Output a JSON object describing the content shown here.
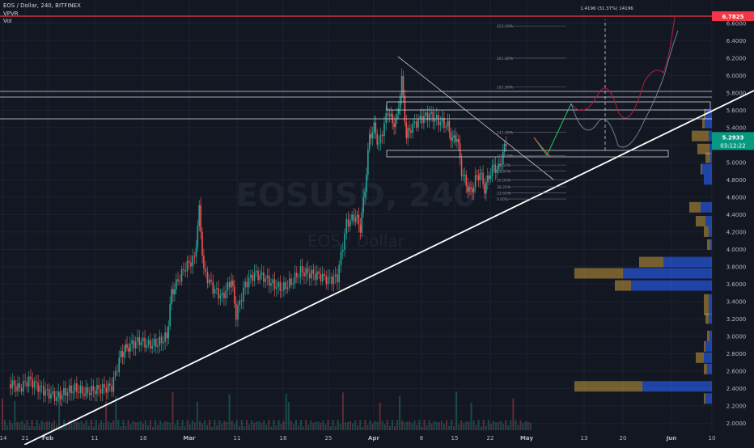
{
  "header": {
    "symbol_line": "EOS / Dollar, 240, BITFINEX",
    "indicator_1": "VPVR",
    "indicator_2": "Vol"
  },
  "watermark": {
    "ticker": "EOSUSD, 240",
    "name": "EOS / Dollar"
  },
  "colors": {
    "background": "#131722",
    "grid": "#1e2230",
    "axis_text": "#b2b5be",
    "up": "#26a69a",
    "down": "#ef5350",
    "resistance": "#f23645",
    "vp_up": "#2962ff",
    "vp_down": "#c99a3a",
    "trendline": "#ffffff",
    "current_label": "#089981"
  },
  "chart_data": {
    "type": "candlestick",
    "title": "EOS / Dollar, 240, BITFINEX",
    "price_axis": {
      "ticks": [
        "6.6000",
        "6.4000",
        "6.2000",
        "6.0000",
        "5.8000",
        "5.6000",
        "5.4000",
        "5.2000",
        "5.0000",
        "4.8000",
        "4.6000",
        "4.4000",
        "4.2000",
        "4.0000",
        "3.8000",
        "3.6000",
        "3.4000",
        "3.2000",
        "3.0000",
        "2.8000",
        "2.6000",
        "2.4000",
        "2.2000",
        "2.0000"
      ],
      "range": [
        1.92,
        6.85
      ]
    },
    "time_axis": {
      "ticks": [
        "14",
        "21",
        "Feb",
        "11",
        "18",
        "Mar",
        "11",
        "18",
        "25",
        "Apr",
        "8",
        "15",
        "22",
        "May",
        "13",
        "20",
        "Jun",
        "10"
      ]
    },
    "price_path": [
      {
        "t": "Jan 14",
        "p": 2.45
      },
      {
        "t": "Jan 16",
        "p": 2.4
      },
      {
        "t": "Jan 18",
        "p": 2.5
      },
      {
        "t": "Jan 20",
        "p": 2.42
      },
      {
        "t": "Jan 22",
        "p": 2.35
      },
      {
        "t": "Jan 24",
        "p": 2.3
      },
      {
        "t": "Jan 26",
        "p": 2.36
      },
      {
        "t": "Jan 28",
        "p": 2.4
      },
      {
        "t": "Jan 30",
        "p": 2.35
      },
      {
        "t": "Feb 1",
        "p": 2.38
      },
      {
        "t": "Feb 3",
        "p": 2.4
      },
      {
        "t": "Feb 5",
        "p": 2.42
      },
      {
        "t": "Feb 7",
        "p": 2.8
      },
      {
        "t": "Feb 8",
        "p": 2.85
      },
      {
        "t": "Feb 9",
        "p": 2.9
      },
      {
        "t": "Feb 11",
        "p": 2.95
      },
      {
        "t": "Feb 13",
        "p": 2.9
      },
      {
        "t": "Feb 15",
        "p": 2.92
      },
      {
        "t": "Feb 17",
        "p": 3.0
      },
      {
        "t": "Feb 18",
        "p": 3.5
      },
      {
        "t": "Feb 19",
        "p": 3.6
      },
      {
        "t": "Feb 21",
        "p": 3.8
      },
      {
        "t": "Feb 23",
        "p": 3.9
      },
      {
        "t": "Feb 24",
        "p": 4.45
      },
      {
        "t": "Feb 25",
        "p": 3.75
      },
      {
        "t": "Feb 27",
        "p": 3.55
      },
      {
        "t": "Mar 1",
        "p": 3.45
      },
      {
        "t": "Mar 3",
        "p": 3.65
      },
      {
        "t": "Mar 4",
        "p": 3.25
      },
      {
        "t": "Mar 6",
        "p": 3.6
      },
      {
        "t": "Mar 8",
        "p": 3.72
      },
      {
        "t": "Mar 10",
        "p": 3.68
      },
      {
        "t": "Mar 12",
        "p": 3.6
      },
      {
        "t": "Mar 14",
        "p": 3.55
      },
      {
        "t": "Mar 16",
        "p": 3.62
      },
      {
        "t": "Mar 18",
        "p": 3.75
      },
      {
        "t": "Mar 20",
        "p": 3.72
      },
      {
        "t": "Mar 22",
        "p": 3.7
      },
      {
        "t": "Mar 24",
        "p": 3.65
      },
      {
        "t": "Mar 26",
        "p": 3.68
      },
      {
        "t": "Mar 28",
        "p": 4.3
      },
      {
        "t": "Mar 30",
        "p": 4.38
      },
      {
        "t": "Mar 31",
        "p": 4.25
      },
      {
        "t": "Apr 1",
        "p": 4.7
      },
      {
        "t": "Apr 2",
        "p": 5.3
      },
      {
        "t": "Apr 3",
        "p": 5.4
      },
      {
        "t": "Apr 4",
        "p": 5.2
      },
      {
        "t": "Apr 6",
        "p": 5.6
      },
      {
        "t": "Apr 7",
        "p": 5.45
      },
      {
        "t": "Apr 8",
        "p": 5.5
      },
      {
        "t": "Apr 9",
        "p": 5.95
      },
      {
        "t": "Apr 10",
        "p": 5.3
      },
      {
        "t": "Apr 11",
        "p": 5.4
      },
      {
        "t": "Apr 13",
        "p": 5.5
      },
      {
        "t": "Apr 15",
        "p": 5.55
      },
      {
        "t": "Apr 17",
        "p": 5.48
      },
      {
        "t": "Apr 19",
        "p": 5.42
      },
      {
        "t": "Apr 20",
        "p": 5.25
      },
      {
        "t": "Apr 21",
        "p": 5.3
      },
      {
        "t": "Apr 22",
        "p": 4.9
      },
      {
        "t": "Apr 23",
        "p": 4.75
      },
      {
        "t": "Apr 24",
        "p": 4.65
      },
      {
        "t": "Apr 25",
        "p": 4.8
      },
      {
        "t": "Apr 26",
        "p": 4.88
      },
      {
        "t": "Apr 27",
        "p": 4.7
      },
      {
        "t": "Apr 28",
        "p": 4.85
      },
      {
        "t": "Apr 29",
        "p": 4.95
      },
      {
        "t": "Apr 30",
        "p": 4.92
      },
      {
        "t": "May 1",
        "p": 5.1
      },
      {
        "t": "May 2",
        "p": 5.29
      }
    ],
    "fib_levels": [
      {
        "label": "423.60%",
        "price": 6.57
      },
      {
        "label": "261.80%",
        "price": 6.2
      },
      {
        "label": "161.80%",
        "price": 5.87
      },
      {
        "label": "141.80%",
        "price": 5.35
      },
      {
        "label": "100.00%",
        "price": 5.08
      },
      {
        "label": "78.60%",
        "price": 4.97
      },
      {
        "label": "61.80%",
        "price": 4.9
      },
      {
        "label": "50.00%",
        "price": 4.8
      },
      {
        "label": "38.20%",
        "price": 4.72
      },
      {
        "label": "23.60%",
        "price": 4.65
      },
      {
        "label": "0.00%",
        "price": 4.58
      }
    ],
    "measure_label": "1.4196 (31.37%) 14196",
    "resistance_price": "6.7825",
    "current_price": "5.2933",
    "countdown": "03:12:22",
    "legend": "none",
    "grid": true
  }
}
